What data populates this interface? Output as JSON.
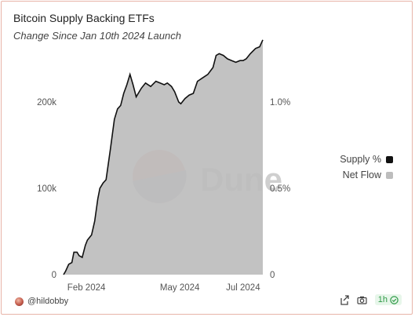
{
  "header": {
    "title": "Bitcoin Supply Backing ETFs",
    "subtitle": "Change Since Jan 10th 2024 Launch"
  },
  "watermark": {
    "text": "Dune"
  },
  "legend": {
    "items": [
      {
        "label": "Supply %",
        "color": "#111111"
      },
      {
        "label": "Net Flow",
        "color": "#bdbdbd"
      }
    ]
  },
  "footer": {
    "user": "@hildobby",
    "refresh_label": "1h",
    "icons": [
      "share-icon",
      "camera-icon",
      "check-circle-icon"
    ]
  },
  "chart_data": {
    "type": "area",
    "x_start": "2024-01-10",
    "x_end": "2024-07-20",
    "x_ticks": [
      {
        "date": "2024-02-01",
        "label": "Feb 2024"
      },
      {
        "date": "2024-05-01",
        "label": "May 2024"
      },
      {
        "date": "2024-07-01",
        "label": "Jul 2024"
      }
    ],
    "y_left": {
      "range": [
        0,
        250000
      ],
      "ticks": [
        0,
        100000,
        200000
      ],
      "tick_labels": [
        "0",
        "100k",
        "200k"
      ]
    },
    "y_right": {
      "range": [
        0,
        1.25
      ],
      "ticks": [
        0,
        0.5,
        1.0
      ],
      "tick_labels": [
        "0",
        "0.5%",
        "1.0%"
      ]
    },
    "series": [
      {
        "name": "Supply %",
        "axis": "right",
        "color": "#111111",
        "points": [
          [
            "2024-01-10",
            0.0
          ],
          [
            "2024-01-12",
            0.02
          ],
          [
            "2024-01-15",
            0.06
          ],
          [
            "2024-01-18",
            0.07
          ],
          [
            "2024-01-20",
            0.13
          ],
          [
            "2024-01-23",
            0.13
          ],
          [
            "2024-01-25",
            0.11
          ],
          [
            "2024-01-28",
            0.1
          ],
          [
            "2024-01-31",
            0.17
          ],
          [
            "2024-02-02",
            0.2
          ],
          [
            "2024-02-06",
            0.23
          ],
          [
            "2024-02-09",
            0.31
          ],
          [
            "2024-02-12",
            0.44
          ],
          [
            "2024-02-14",
            0.5
          ],
          [
            "2024-02-17",
            0.53
          ],
          [
            "2024-02-20",
            0.55
          ],
          [
            "2024-02-24",
            0.72
          ],
          [
            "2024-02-28",
            0.9
          ],
          [
            "2024-03-02",
            0.96
          ],
          [
            "2024-03-05",
            0.98
          ],
          [
            "2024-03-08",
            1.05
          ],
          [
            "2024-03-11",
            1.1
          ],
          [
            "2024-03-14",
            1.16
          ],
          [
            "2024-03-17",
            1.1
          ],
          [
            "2024-03-20",
            1.03
          ],
          [
            "2024-03-25",
            1.08
          ],
          [
            "2024-03-29",
            1.11
          ],
          [
            "2024-04-03",
            1.09
          ],
          [
            "2024-04-08",
            1.12
          ],
          [
            "2024-04-12",
            1.11
          ],
          [
            "2024-04-16",
            1.1
          ],
          [
            "2024-04-19",
            1.11
          ],
          [
            "2024-04-23",
            1.09
          ],
          [
            "2024-04-26",
            1.06
          ],
          [
            "2024-04-30",
            1.0
          ],
          [
            "2024-05-02",
            0.99
          ],
          [
            "2024-05-06",
            1.02
          ],
          [
            "2024-05-10",
            1.04
          ],
          [
            "2024-05-14",
            1.05
          ],
          [
            "2024-05-18",
            1.12
          ],
          [
            "2024-05-23",
            1.14
          ],
          [
            "2024-05-28",
            1.16
          ],
          [
            "2024-06-02",
            1.2
          ],
          [
            "2024-06-05",
            1.27
          ],
          [
            "2024-06-08",
            1.28
          ],
          [
            "2024-06-12",
            1.27
          ],
          [
            "2024-06-16",
            1.25
          ],
          [
            "2024-06-20",
            1.24
          ],
          [
            "2024-06-24",
            1.23
          ],
          [
            "2024-06-28",
            1.24
          ],
          [
            "2024-07-01",
            1.24
          ],
          [
            "2024-07-04",
            1.25
          ],
          [
            "2024-07-08",
            1.28
          ],
          [
            "2024-07-13",
            1.31
          ],
          [
            "2024-07-17",
            1.32
          ],
          [
            "2024-07-20",
            1.36
          ]
        ]
      },
      {
        "name": "Net Flow",
        "axis": "left",
        "color": "#bdbdbd",
        "fill": "same-as-supply-area"
      }
    ]
  }
}
